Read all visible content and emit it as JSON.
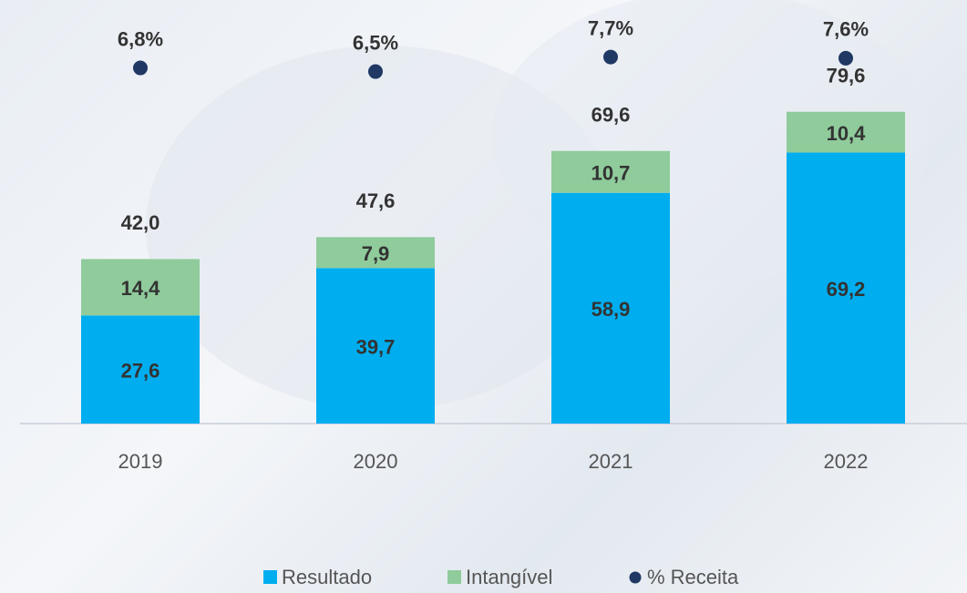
{
  "chart_data": {
    "type": "stacked_bar",
    "categories": [
      "2019",
      "2020",
      "2021",
      "2022"
    ],
    "series": [
      {
        "name": "Resultado",
        "color": "#00aeef",
        "values": [
          27.6,
          39.7,
          58.9,
          69.2
        ],
        "value_labels": [
          "27,6",
          "39,7",
          "58,9",
          "69,2"
        ]
      },
      {
        "name": "Intangível",
        "color": "#8fcb9b",
        "values": [
          14.4,
          7.9,
          10.7,
          10.4
        ],
        "value_labels": [
          "14,4",
          "7,9",
          "10,7",
          "10,4"
        ]
      },
      {
        "name": "% Receita",
        "color": "#1f3864",
        "type": "dot",
        "axis": "y2",
        "values": [
          6.8,
          6.5,
          7.7,
          7.6
        ],
        "value_labels": [
          "6,8%",
          "6,5%",
          "7,7%",
          "7,6%"
        ]
      }
    ],
    "totals": {
      "values": [
        42.0,
        47.6,
        69.6,
        79.6
      ],
      "value_labels": [
        "42,0",
        "47,6",
        "69,6",
        "79,6"
      ]
    }
  }
}
